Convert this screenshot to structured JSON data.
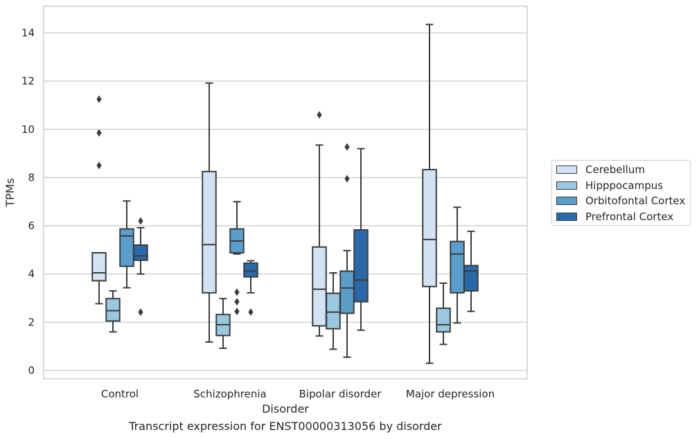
{
  "caption": "Transcript expression for ENST00000313056 by disorder",
  "chart_data": {
    "type": "boxplot",
    "xlabel": "Disorder",
    "ylabel": "TPMs",
    "ylim": [
      -0.35,
      15.1
    ],
    "yticks": [
      0,
      2,
      4,
      6,
      8,
      10,
      12,
      14
    ],
    "grid": "horizontal",
    "legend_position": "right",
    "categories": [
      "Control",
      "Schizophrenia",
      "Bipolar disorder",
      "Major depression"
    ],
    "series": [
      {
        "name": "Cerebellum",
        "color": "#d2e3f3",
        "boxes": [
          {
            "whislo": 2.77,
            "q1": 3.72,
            "med": 4.05,
            "q3": 4.88,
            "whishi": 4.88,
            "fliers": [
              8.5,
              9.85,
              11.25
            ]
          },
          {
            "whislo": 1.18,
            "q1": 3.22,
            "med": 5.22,
            "q3": 8.25,
            "whishi": 11.92,
            "fliers": []
          },
          {
            "whislo": 1.43,
            "q1": 1.85,
            "med": 3.37,
            "q3": 5.12,
            "whishi": 9.35,
            "fliers": [
              10.6
            ]
          },
          {
            "whislo": 0.3,
            "q1": 3.48,
            "med": 5.43,
            "q3": 8.33,
            "whishi": 14.35,
            "fliers": []
          }
        ]
      },
      {
        "name": "Hipppocampus",
        "color": "#9ac8e0",
        "boxes": [
          {
            "whislo": 1.6,
            "q1": 2.05,
            "med": 2.48,
            "q3": 2.98,
            "whishi": 3.3,
            "fliers": []
          },
          {
            "whislo": 0.92,
            "q1": 1.45,
            "med": 1.9,
            "q3": 2.32,
            "whishi": 2.98,
            "fliers": []
          },
          {
            "whislo": 0.88,
            "q1": 1.73,
            "med": 2.42,
            "q3": 3.2,
            "whishi": 4.05,
            "fliers": []
          },
          {
            "whislo": 1.08,
            "q1": 1.6,
            "med": 1.9,
            "q3": 2.58,
            "whishi": 3.62,
            "fliers": []
          }
        ]
      },
      {
        "name": "Orbitofontal Cortex",
        "color": "#5a9ecb",
        "boxes": [
          {
            "whislo": 3.43,
            "q1": 4.32,
            "med": 5.58,
            "q3": 5.87,
            "whishi": 7.03,
            "fliers": []
          },
          {
            "whislo": 4.83,
            "q1": 4.88,
            "med": 5.37,
            "q3": 5.87,
            "whishi": 7.0,
            "fliers": [
              2.45,
              2.85,
              3.25
            ]
          },
          {
            "whislo": 0.55,
            "q1": 2.37,
            "med": 3.42,
            "q3": 4.12,
            "whishi": 4.97,
            "fliers": [
              7.95,
              9.27
            ]
          },
          {
            "whislo": 1.97,
            "q1": 3.22,
            "med": 4.83,
            "q3": 5.35,
            "whishi": 6.77,
            "fliers": []
          }
        ]
      },
      {
        "name": "Prefrontal Cortex",
        "color": "#2869ac",
        "boxes": [
          {
            "whislo": 4.0,
            "q1": 4.57,
            "med": 4.75,
            "q3": 5.2,
            "whishi": 5.92,
            "fliers": [
              2.42,
              6.2
            ]
          },
          {
            "whislo": 3.22,
            "q1": 3.88,
            "med": 4.12,
            "q3": 4.45,
            "whishi": 4.55,
            "fliers": [
              2.42
            ]
          },
          {
            "whislo": 1.67,
            "q1": 2.85,
            "med": 3.75,
            "q3": 5.83,
            "whishi": 9.2,
            "fliers": []
          },
          {
            "whislo": 2.45,
            "q1": 3.3,
            "med": 4.12,
            "q3": 4.35,
            "whishi": 5.77,
            "fliers": []
          }
        ]
      }
    ]
  }
}
